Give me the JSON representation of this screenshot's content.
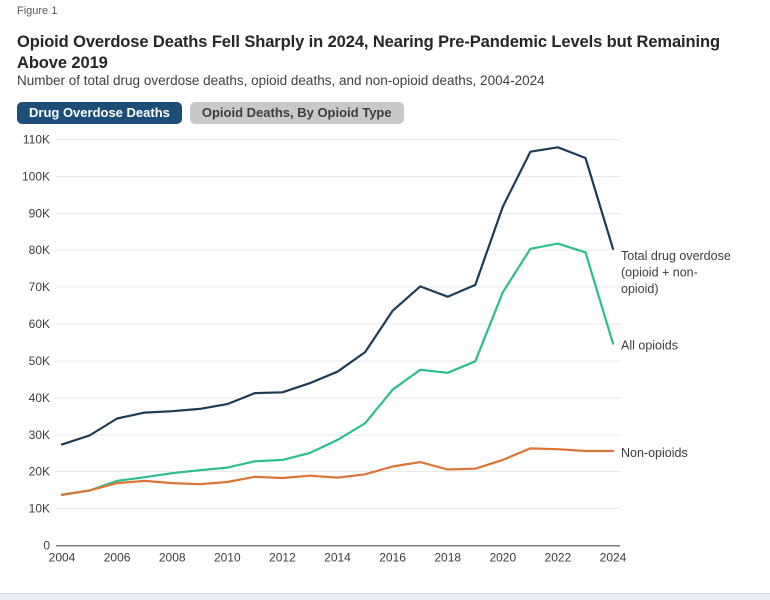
{
  "figure_label": "Figure 1",
  "title": "Opioid Overdose Deaths Fell Sharply in 2024, Nearing Pre-Pandemic Levels but Remaining Above 2019",
  "subtitle": "Number of total drug overdose deaths, opioid deaths, and non-opioid deaths, 2004-2024",
  "tabs": {
    "drug_overdose": "Drug Overdose Deaths",
    "opioid_by_type": "Opioid Deaths, By Opioid Type"
  },
  "colors": {
    "active_tab_bg": "#1c4e77",
    "inactive_tab_bg": "#c9c9c9",
    "title_text": "#262626",
    "axis_line": "#7d7d7d",
    "gridline": "#eaeaea",
    "tick_text": "#3d3d3d",
    "annotation_text": "#3d3d3d",
    "total_line": "#1e3b55",
    "opioid_line": "#2dbe8e",
    "non_opioid_line": "#dc7434"
  },
  "chart_data": {
    "type": "line",
    "title": "Number of total drug overdose deaths, opioid deaths, and non-opioid deaths, 2004-2024",
    "xlabel": "",
    "ylabel": "",
    "grid": true,
    "legend_position": "right-edge-annotations",
    "ylim": [
      0,
      110000
    ],
    "x": [
      2004,
      2005,
      2006,
      2007,
      2008,
      2009,
      2010,
      2011,
      2012,
      2013,
      2014,
      2015,
      2016,
      2017,
      2018,
      2019,
      2020,
      2021,
      2022,
      2023,
      2024
    ],
    "x_tick_labels": [
      "2004",
      "2006",
      "2008",
      "2010",
      "2012",
      "2014",
      "2016",
      "2018",
      "2020",
      "2022",
      "2024"
    ],
    "y_ticks": [
      {
        "v": 0,
        "label": "0"
      },
      {
        "v": 10000,
        "label": "10K"
      },
      {
        "v": 20000,
        "label": "20K"
      },
      {
        "v": 30000,
        "label": "30K"
      },
      {
        "v": 40000,
        "label": "40K"
      },
      {
        "v": 50000,
        "label": "50K"
      },
      {
        "v": 60000,
        "label": "60K"
      },
      {
        "v": 70000,
        "label": "70K"
      },
      {
        "v": 80000,
        "label": "80K"
      },
      {
        "v": 90000,
        "label": "90K"
      },
      {
        "v": 100000,
        "label": "100K"
      },
      {
        "v": 110000,
        "label": "110K"
      }
    ],
    "series": [
      {
        "name": "Total drug overdose (opioid + non-opioid)",
        "label_lines": [
          "Total drug overdose",
          "(opioid + non-",
          "opioid)"
        ],
        "color_key": "total_line",
        "values": [
          27400,
          29800,
          34400,
          36000,
          36400,
          37000,
          38300,
          41300,
          41500,
          44000,
          47100,
          52400,
          63600,
          70200,
          67400,
          70600,
          91800,
          106700,
          107900,
          105000,
          80400
        ]
      },
      {
        "name": "All opioids",
        "label_lines": [
          "All opioids"
        ],
        "color_key": "opioid_line",
        "values": [
          13800,
          14900,
          17500,
          18500,
          19600,
          20400,
          21100,
          22800,
          23200,
          25100,
          28600,
          33100,
          42200,
          47600,
          46800,
          49900,
          68600,
          80400,
          81800,
          79400,
          54700
        ]
      },
      {
        "name": "Non-opioids",
        "label_lines": [
          "Non-opioids"
        ],
        "color_key": "non_opioid_line",
        "values": [
          13700,
          14900,
          16900,
          17500,
          16900,
          16600,
          17200,
          18600,
          18300,
          18900,
          18400,
          19300,
          21400,
          22600,
          20600,
          20800,
          23200,
          26300,
          26100,
          25600,
          25600
        ]
      }
    ]
  }
}
